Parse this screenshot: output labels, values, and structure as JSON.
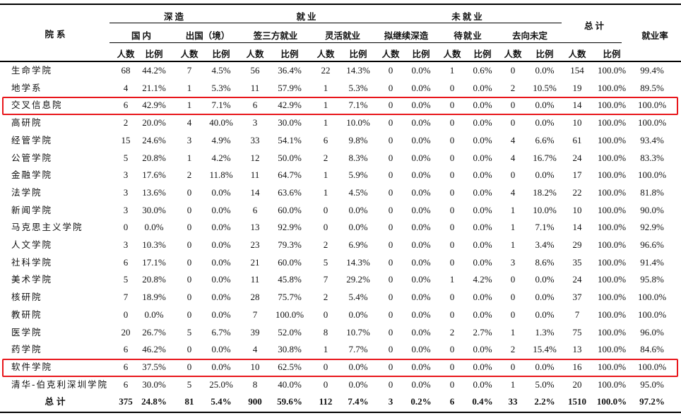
{
  "table": {
    "header": {
      "department": "院系",
      "groups": [
        {
          "label": "深造",
          "subgroups": [
            "国内",
            "出国（境）"
          ]
        },
        {
          "label": "就业",
          "subgroups": [
            "签三方就业",
            "灵活就业"
          ]
        },
        {
          "label": "未就业",
          "subgroups": [
            "拟继续深造",
            "待就业",
            "去向未定"
          ]
        }
      ],
      "total": "总计",
      "employment_rate": "就业率",
      "count": "人数",
      "ratio": "比例"
    },
    "rows": [
      {
        "name": "生命学院",
        "values": [
          "68",
          "44.2%",
          "7",
          "4.5%",
          "56",
          "36.4%",
          "22",
          "14.3%",
          "0",
          "0.0%",
          "1",
          "0.6%",
          "0",
          "0.0%",
          "154",
          "100.0%",
          "99.4%"
        ],
        "highlighted": false
      },
      {
        "name": "地学系",
        "values": [
          "4",
          "21.1%",
          "1",
          "5.3%",
          "11",
          "57.9%",
          "1",
          "5.3%",
          "0",
          "0.0%",
          "0",
          "0.0%",
          "2",
          "10.5%",
          "19",
          "100.0%",
          "89.5%"
        ],
        "highlighted": false
      },
      {
        "name": "交叉信息院",
        "values": [
          "6",
          "42.9%",
          "1",
          "7.1%",
          "6",
          "42.9%",
          "1",
          "7.1%",
          "0",
          "0.0%",
          "0",
          "0.0%",
          "0",
          "0.0%",
          "14",
          "100.0%",
          "100.0%"
        ],
        "highlighted": true
      },
      {
        "name": "高研院",
        "values": [
          "2",
          "20.0%",
          "4",
          "40.0%",
          "3",
          "30.0%",
          "1",
          "10.0%",
          "0",
          "0.0%",
          "0",
          "0.0%",
          "0",
          "0.0%",
          "10",
          "100.0%",
          "100.0%"
        ],
        "highlighted": false
      },
      {
        "name": "经管学院",
        "values": [
          "15",
          "24.6%",
          "3",
          "4.9%",
          "33",
          "54.1%",
          "6",
          "9.8%",
          "0",
          "0.0%",
          "0",
          "0.0%",
          "4",
          "6.6%",
          "61",
          "100.0%",
          "93.4%"
        ],
        "highlighted": false
      },
      {
        "name": "公管学院",
        "values": [
          "5",
          "20.8%",
          "1",
          "4.2%",
          "12",
          "50.0%",
          "2",
          "8.3%",
          "0",
          "0.0%",
          "0",
          "0.0%",
          "4",
          "16.7%",
          "24",
          "100.0%",
          "83.3%"
        ],
        "highlighted": false
      },
      {
        "name": "金融学院",
        "values": [
          "3",
          "17.6%",
          "2",
          "11.8%",
          "11",
          "64.7%",
          "1",
          "5.9%",
          "0",
          "0.0%",
          "0",
          "0.0%",
          "0",
          "0.0%",
          "17",
          "100.0%",
          "100.0%"
        ],
        "highlighted": false
      },
      {
        "name": "法学院",
        "values": [
          "3",
          "13.6%",
          "0",
          "0.0%",
          "14",
          "63.6%",
          "1",
          "4.5%",
          "0",
          "0.0%",
          "0",
          "0.0%",
          "4",
          "18.2%",
          "22",
          "100.0%",
          "81.8%"
        ],
        "highlighted": false
      },
      {
        "name": "新闻学院",
        "values": [
          "3",
          "30.0%",
          "0",
          "0.0%",
          "6",
          "60.0%",
          "0",
          "0.0%",
          "0",
          "0.0%",
          "0",
          "0.0%",
          "1",
          "10.0%",
          "10",
          "100.0%",
          "90.0%"
        ],
        "highlighted": false
      },
      {
        "name": "马克思主义学院",
        "values": [
          "0",
          "0.0%",
          "0",
          "0.0%",
          "13",
          "92.9%",
          "0",
          "0.0%",
          "0",
          "0.0%",
          "0",
          "0.0%",
          "1",
          "7.1%",
          "14",
          "100.0%",
          "92.9%"
        ],
        "highlighted": false
      },
      {
        "name": "人文学院",
        "values": [
          "3",
          "10.3%",
          "0",
          "0.0%",
          "23",
          "79.3%",
          "2",
          "6.9%",
          "0",
          "0.0%",
          "0",
          "0.0%",
          "1",
          "3.4%",
          "29",
          "100.0%",
          "96.6%"
        ],
        "highlighted": false
      },
      {
        "name": "社科学院",
        "values": [
          "6",
          "17.1%",
          "0",
          "0.0%",
          "21",
          "60.0%",
          "5",
          "14.3%",
          "0",
          "0.0%",
          "0",
          "0.0%",
          "3",
          "8.6%",
          "35",
          "100.0%",
          "91.4%"
        ],
        "highlighted": false
      },
      {
        "name": "美术学院",
        "values": [
          "5",
          "20.8%",
          "0",
          "0.0%",
          "11",
          "45.8%",
          "7",
          "29.2%",
          "0",
          "0.0%",
          "1",
          "4.2%",
          "0",
          "0.0%",
          "24",
          "100.0%",
          "95.8%"
        ],
        "highlighted": false
      },
      {
        "name": "核研院",
        "values": [
          "7",
          "18.9%",
          "0",
          "0.0%",
          "28",
          "75.7%",
          "2",
          "5.4%",
          "0",
          "0.0%",
          "0",
          "0.0%",
          "0",
          "0.0%",
          "37",
          "100.0%",
          "100.0%"
        ],
        "highlighted": false
      },
      {
        "name": "教研院",
        "values": [
          "0",
          "0.0%",
          "0",
          "0.0%",
          "7",
          "100.0%",
          "0",
          "0.0%",
          "0",
          "0.0%",
          "0",
          "0.0%",
          "0",
          "0.0%",
          "7",
          "100.0%",
          "100.0%"
        ],
        "highlighted": false
      },
      {
        "name": "医学院",
        "values": [
          "20",
          "26.7%",
          "5",
          "6.7%",
          "39",
          "52.0%",
          "8",
          "10.7%",
          "0",
          "0.0%",
          "2",
          "2.7%",
          "1",
          "1.3%",
          "75",
          "100.0%",
          "96.0%"
        ],
        "highlighted": false
      },
      {
        "name": "药学院",
        "values": [
          "6",
          "46.2%",
          "0",
          "0.0%",
          "4",
          "30.8%",
          "1",
          "7.7%",
          "0",
          "0.0%",
          "0",
          "0.0%",
          "2",
          "15.4%",
          "13",
          "100.0%",
          "84.6%"
        ],
        "highlighted": false
      },
      {
        "name": "软件学院",
        "values": [
          "6",
          "37.5%",
          "0",
          "0.0%",
          "10",
          "62.5%",
          "0",
          "0.0%",
          "0",
          "0.0%",
          "0",
          "0.0%",
          "0",
          "0.0%",
          "16",
          "100.0%",
          "100.0%"
        ],
        "highlighted": true
      },
      {
        "name": "清华-伯克利深圳学院",
        "values": [
          "6",
          "30.0%",
          "5",
          "25.0%",
          "8",
          "40.0%",
          "0",
          "0.0%",
          "0",
          "0.0%",
          "0",
          "0.0%",
          "1",
          "5.0%",
          "20",
          "100.0%",
          "95.0%"
        ],
        "highlighted": false
      }
    ],
    "total_row": {
      "name": "总计",
      "values": [
        "375",
        "24.8%",
        "81",
        "5.4%",
        "900",
        "59.6%",
        "112",
        "7.4%",
        "3",
        "0.2%",
        "6",
        "0.4%",
        "33",
        "2.2%",
        "1510",
        "100.0%",
        "97.2%"
      ]
    },
    "highlight_color": "#e8161b"
  }
}
